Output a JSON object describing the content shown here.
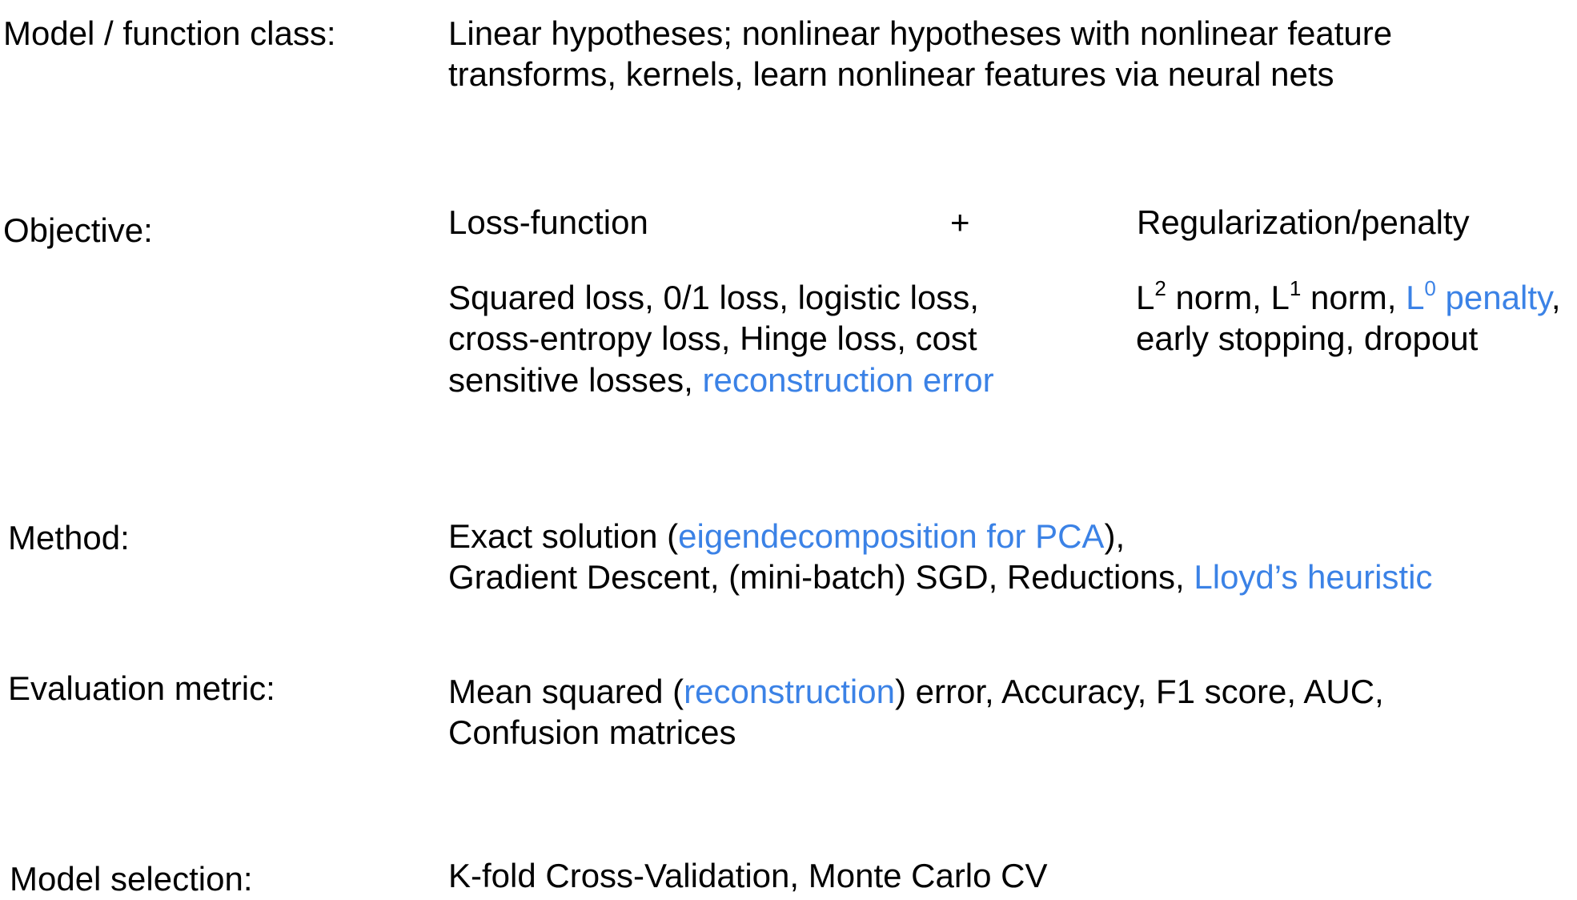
{
  "colors": {
    "text": "#000000",
    "highlight": "#3b82e6",
    "background": "#ffffff"
  },
  "model": {
    "label": "Model / function class:",
    "line1": "Linear hypotheses; nonlinear hypotheses with nonlinear feature",
    "line2": "transforms, kernels, learn nonlinear features via neural nets"
  },
  "objective": {
    "label": "Objective:",
    "loss_header": "Loss-function",
    "plus": "+",
    "reg_header": "Regularization/penalty",
    "loss_line1": "Squared loss, 0/1 loss, logistic loss,",
    "loss_line2": "cross-entropy loss, Hinge loss, cost",
    "loss_line3_a": "sensitive losses, ",
    "loss_line3_hl": "reconstruction error",
    "reg_L": "L",
    "reg_sup2": "2",
    "reg_mid": " norm, L",
    "reg_sup1": "1",
    "reg_after": " norm, ",
    "reg_hl_L": "L",
    "reg_sup0": "0",
    "reg_hl_penalty": " penalty",
    "reg_comma": ",",
    "reg_line2": "early stopping, dropout"
  },
  "method": {
    "label": "Method:",
    "line1_a": "Exact solution (",
    "line1_hl": "eigendecomposition for PCA",
    "line1_b": "),",
    "line2_a": "Gradient Descent, (mini-batch) SGD, Reductions, ",
    "line2_hl": "Lloyd’s heuristic"
  },
  "evaluation": {
    "label": "Evaluation metric:",
    "line1_a": "Mean squared (",
    "line1_hl": "reconstruction",
    "line1_b": ") error, Accuracy, F1 score,  AUC,",
    "line2": "Confusion matrices"
  },
  "selection": {
    "label": "Model selection:",
    "line1": "K-fold Cross-Validation, Monte Carlo CV"
  }
}
